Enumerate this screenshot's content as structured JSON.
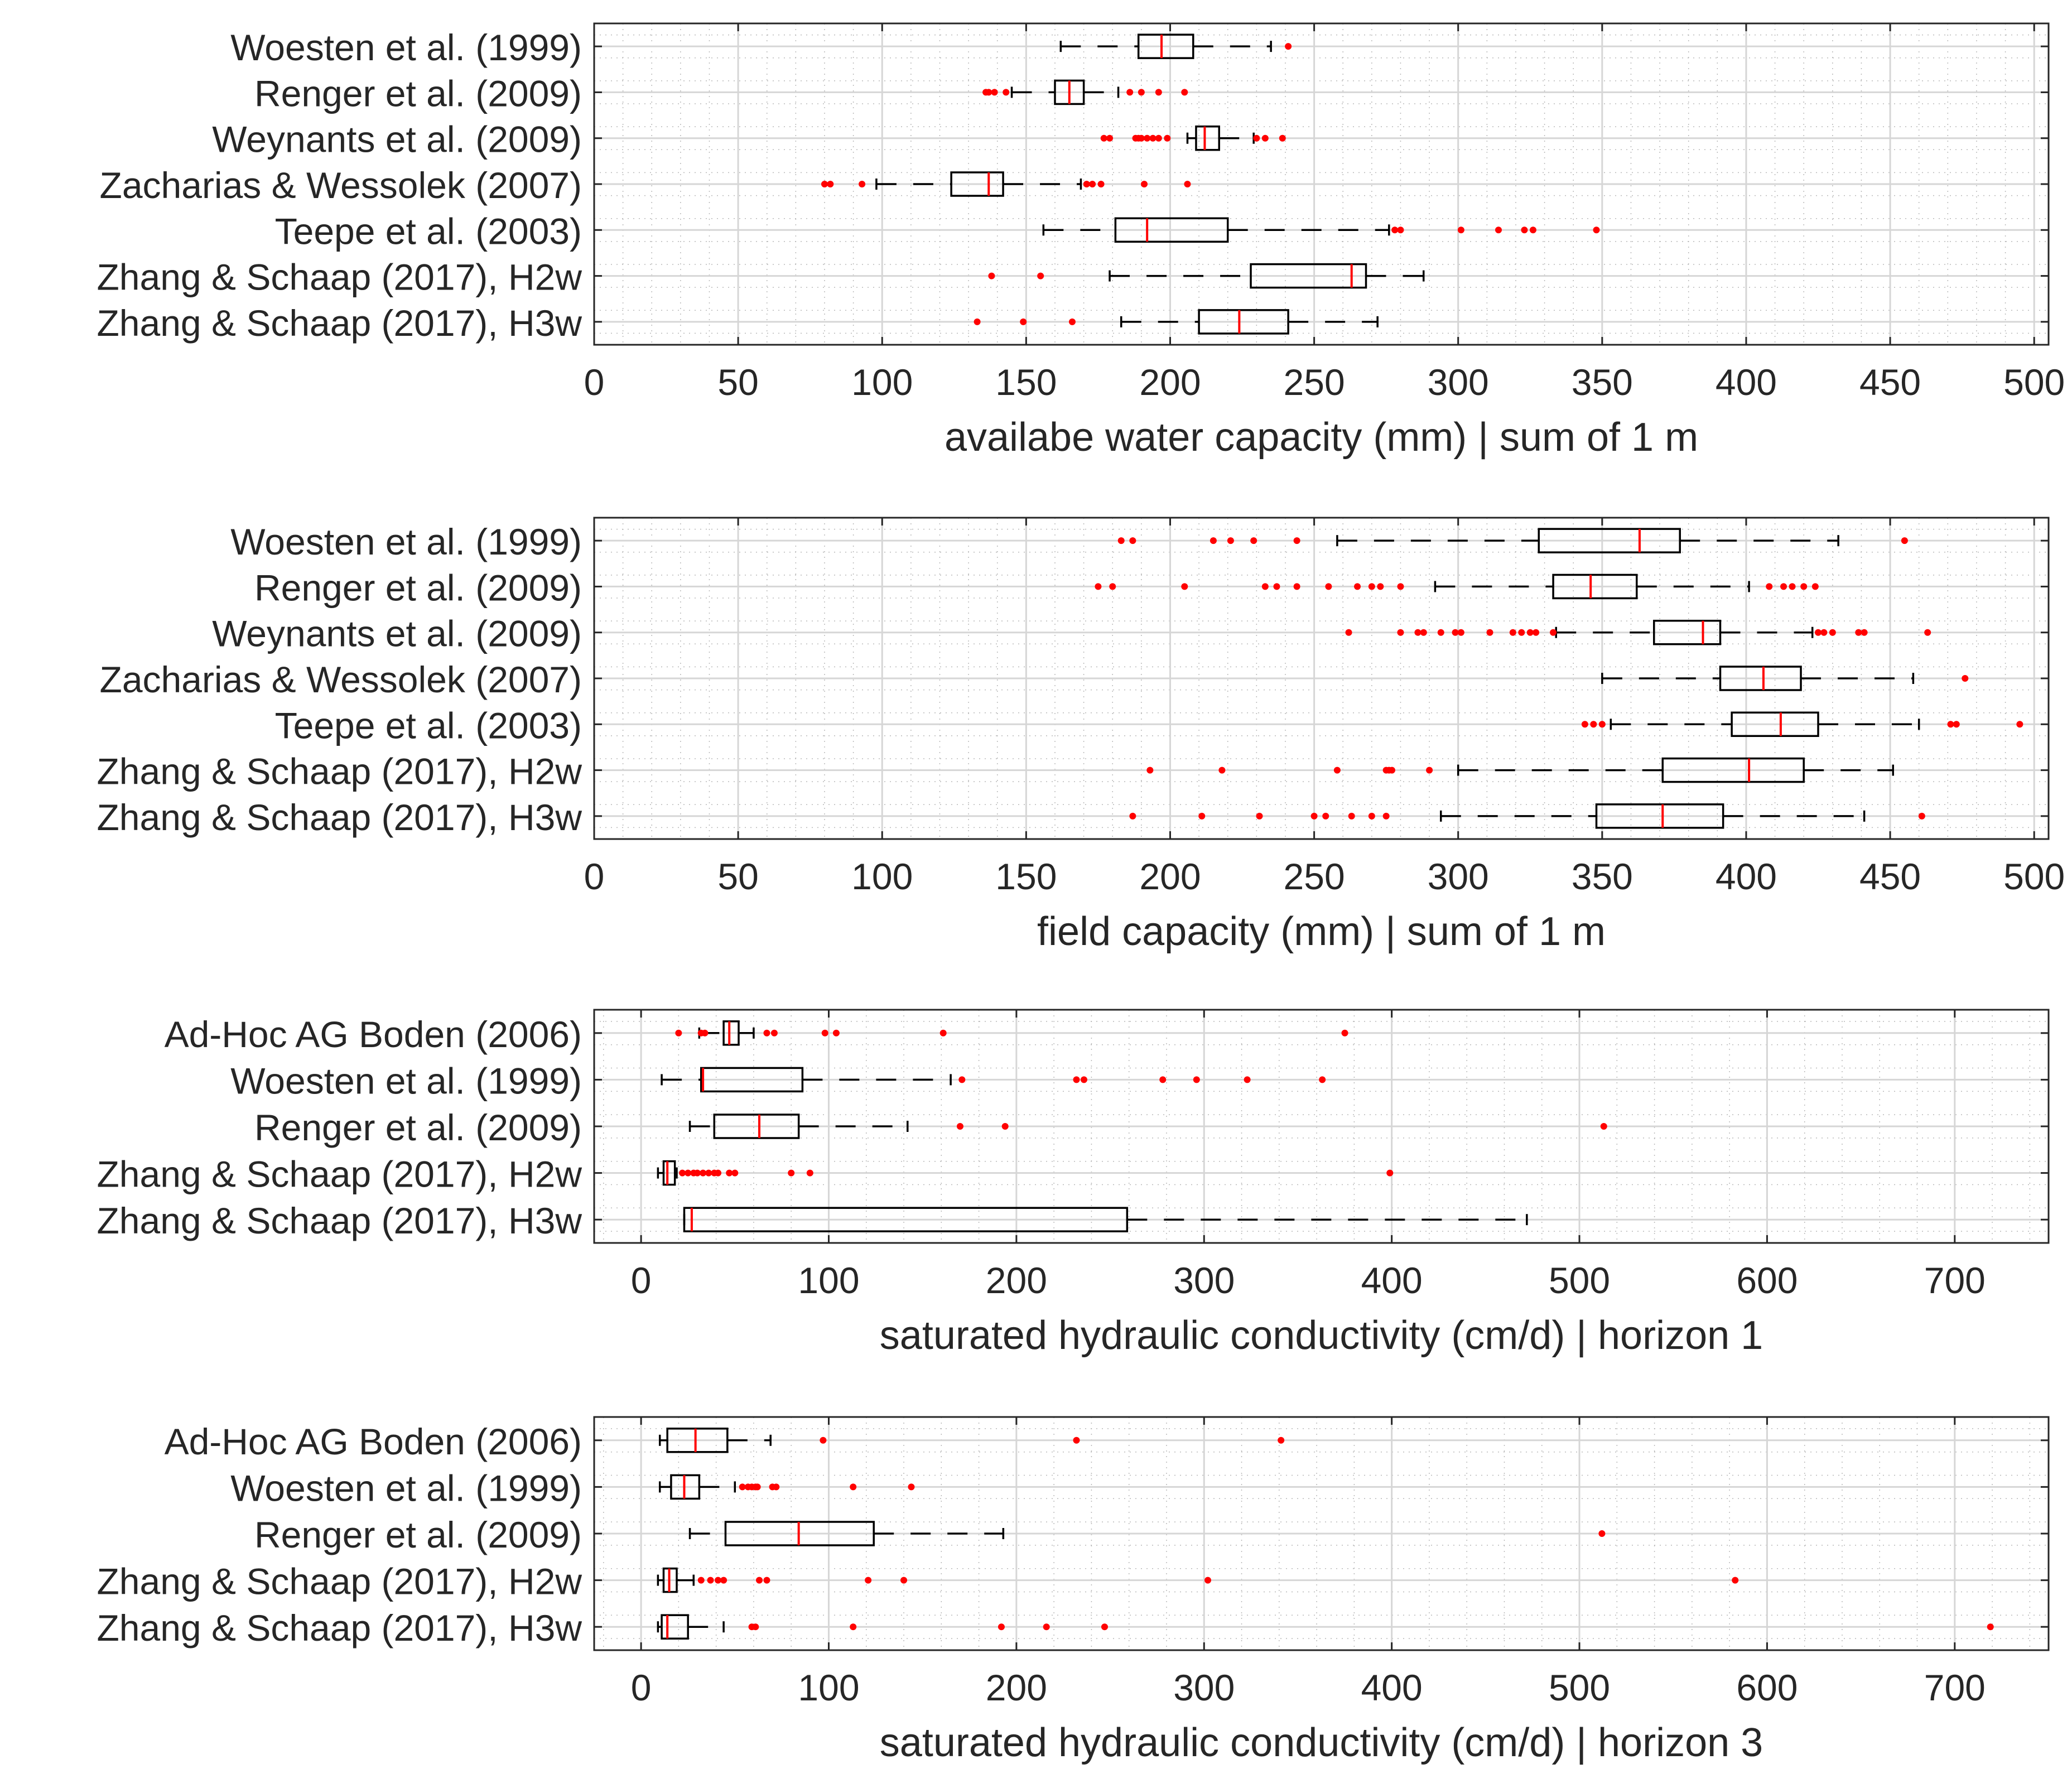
{
  "colors": {
    "box": "#000000",
    "median": "#ff0000",
    "outlier": "#ff0000",
    "grid": "#d6d6d6",
    "text": "#262626"
  },
  "chart_data": [
    {
      "type": "box",
      "id": "awc",
      "xlabel": "availabe water capacity (mm)  |  sum of  1 m",
      "xlim": [
        0,
        505
      ],
      "xticks": [
        0,
        50,
        100,
        150,
        200,
        250,
        300,
        350,
        400,
        450,
        500
      ],
      "xtick_labels": [
        "0",
        "50",
        "100",
        "150",
        "200",
        "250",
        "300",
        "350",
        "400",
        "450",
        "500"
      ],
      "grid": true,
      "series": [
        {
          "name": "Woesten et al. (1999)",
          "whisker_low": 162,
          "q1": 189,
          "median": 197,
          "q3": 208,
          "whisker_high": 235,
          "outliers": [
            241
          ]
        },
        {
          "name": "Renger et al. (2009)",
          "whisker_low": 145,
          "q1": 160,
          "median": 165,
          "q3": 170,
          "whisker_high": 182,
          "outliers": [
            136,
            137,
            139,
            143,
            186,
            190,
            196,
            205
          ]
        },
        {
          "name": "Weynants et al. (2009)",
          "whisker_low": 206,
          "q1": 209,
          "median": 212,
          "q3": 217,
          "whisker_high": 229,
          "outliers": [
            177,
            179,
            188,
            189,
            190,
            192,
            194,
            196,
            199,
            230,
            233,
            239
          ]
        },
        {
          "name": "Zacharias & Wessolek (2007)",
          "whisker_low": 98,
          "q1": 124,
          "median": 137,
          "q3": 142,
          "whisker_high": 169,
          "outliers": [
            80,
            82,
            93,
            171,
            173,
            176,
            191,
            206
          ]
        },
        {
          "name": "Teepe et al. (2003)",
          "whisker_low": 156,
          "q1": 181,
          "median": 192,
          "q3": 220,
          "whisker_high": 276,
          "outliers": [
            278,
            280,
            301,
            314,
            323,
            326,
            348
          ]
        },
        {
          "name": "Zhang & Schaap (2017), H2w",
          "whisker_low": 179,
          "q1": 228,
          "median": 263,
          "q3": 268,
          "whisker_high": 288,
          "outliers": [
            138,
            155
          ]
        },
        {
          "name": "Zhang & Schaap (2017), H3w",
          "whisker_low": 183,
          "q1": 210,
          "median": 224,
          "q3": 241,
          "whisker_high": 272,
          "outliers": [
            133,
            149,
            166
          ]
        }
      ]
    },
    {
      "type": "box",
      "id": "fc",
      "xlabel": "field capacity (mm)  |  sum of  1 m",
      "xlim": [
        0,
        505
      ],
      "xticks": [
        0,
        50,
        100,
        150,
        200,
        250,
        300,
        350,
        400,
        450,
        500
      ],
      "xtick_labels": [
        "0",
        "50",
        "100",
        "150",
        "200",
        "250",
        "300",
        "350",
        "400",
        "450",
        "500"
      ],
      "grid": true,
      "series": [
        {
          "name": "Woesten et al. (1999)",
          "whisker_low": 258,
          "q1": 328,
          "median": 363,
          "q3": 377,
          "whisker_high": 432,
          "outliers": [
            183,
            187,
            215,
            221,
            229,
            244,
            455
          ]
        },
        {
          "name": "Renger et al. (2009)",
          "whisker_low": 292,
          "q1": 333,
          "median": 346,
          "q3": 362,
          "whisker_high": 401,
          "outliers": [
            175,
            180,
            205,
            233,
            237,
            244,
            255,
            265,
            270,
            273,
            280,
            408,
            413,
            416,
            420,
            424
          ]
        },
        {
          "name": "Weynants et al. (2009)",
          "whisker_low": 334,
          "q1": 368,
          "median": 385,
          "q3": 391,
          "whisker_high": 423,
          "outliers": [
            262,
            280,
            286,
            288,
            294,
            299,
            301,
            311,
            319,
            322,
            325,
            327,
            333,
            425,
            427,
            430,
            439,
            441,
            463
          ]
        },
        {
          "name": "Zacharias & Wessolek (2007)",
          "whisker_low": 350,
          "q1": 391,
          "median": 406,
          "q3": 419,
          "whisker_high": 458,
          "outliers": [
            476
          ]
        },
        {
          "name": "Teepe et al. (2003)",
          "whisker_low": 353,
          "q1": 395,
          "median": 412,
          "q3": 425,
          "whisker_high": 460,
          "outliers": [
            344,
            347,
            350,
            471,
            473,
            495
          ]
        },
        {
          "name": "Zhang & Schaap (2017), H2w",
          "whisker_low": 300,
          "q1": 371,
          "median": 401,
          "q3": 420,
          "whisker_high": 451,
          "outliers": [
            193,
            218,
            258,
            275,
            276,
            277,
            290
          ]
        },
        {
          "name": "Zhang & Schaap (2017), H3w",
          "whisker_low": 294,
          "q1": 348,
          "median": 371,
          "q3": 392,
          "whisker_high": 441,
          "outliers": [
            187,
            211,
            231,
            250,
            254,
            263,
            270,
            275,
            461
          ]
        }
      ]
    },
    {
      "type": "box",
      "id": "ksat_h1",
      "xlabel": "saturated hydraulic conductivity (cm/d)  |  horizon  1",
      "xlim": [
        -25,
        750
      ],
      "xticks": [
        0,
        100,
        200,
        300,
        400,
        500,
        600,
        700
      ],
      "xtick_labels": [
        "0",
        "100",
        "200",
        "300",
        "400",
        "500",
        "600",
        "700"
      ],
      "grid": true,
      "series": [
        {
          "name": "Ad-Hoc AG Boden (2006)",
          "whisker_low": 31,
          "q1": 44,
          "median": 47,
          "q3": 52,
          "whisker_high": 60,
          "outliers": [
            20,
            32,
            34,
            67,
            71,
            98,
            104,
            161,
            375
          ]
        },
        {
          "name": "Woesten et al. (1999)",
          "whisker_low": 11,
          "q1": 32,
          "median": 33,
          "q3": 86,
          "whisker_high": 165,
          "outliers": [
            171,
            232,
            236,
            278,
            296,
            323,
            363
          ]
        },
        {
          "name": "Renger et al. (2009)",
          "whisker_low": 26,
          "q1": 39,
          "median": 63,
          "q3": 84,
          "whisker_high": 142,
          "outliers": [
            170,
            194,
            513
          ]
        },
        {
          "name": "Zhang & Schaap (2017), H2w",
          "whisker_low": 9,
          "q1": 12,
          "median": 14,
          "q3": 18,
          "whisker_high": 19,
          "outliers": [
            22,
            25,
            28,
            30,
            33,
            36,
            39,
            41,
            47,
            50,
            80,
            90,
            399
          ]
        },
        {
          "name": "Zhang & Schaap (2017), H3w",
          "whisker_low": 23,
          "q1": 23,
          "median": 27,
          "q3": 259,
          "whisker_high": 472,
          "outliers": []
        }
      ]
    },
    {
      "type": "box",
      "id": "ksat_h3",
      "xlabel": "saturated hydraulic conductivity (cm/d)  |  horizon  3",
      "xlim": [
        -25,
        750
      ],
      "xticks": [
        0,
        100,
        200,
        300,
        400,
        500,
        600,
        700
      ],
      "xtick_labels": [
        "0",
        "100",
        "200",
        "300",
        "400",
        "500",
        "600",
        "700"
      ],
      "grid": true,
      "series": [
        {
          "name": "Ad-Hoc AG Boden (2006)",
          "whisker_low": 10,
          "q1": 14,
          "median": 29,
          "q3": 46,
          "whisker_high": 69,
          "outliers": [
            97,
            232,
            341
          ]
        },
        {
          "name": "Woesten et al. (1999)",
          "whisker_low": 10,
          "q1": 16,
          "median": 23,
          "q3": 31,
          "whisker_high": 50,
          "outliers": [
            54,
            57,
            59,
            61,
            62,
            70,
            72,
            113,
            144
          ]
        },
        {
          "name": "Renger et al. (2009)",
          "whisker_low": 26,
          "q1": 45,
          "median": 84,
          "q3": 124,
          "whisker_high": 193,
          "outliers": [
            512
          ]
        },
        {
          "name": "Zhang & Schaap (2017), H2w",
          "whisker_low": 9,
          "q1": 12,
          "median": 15,
          "q3": 19,
          "whisker_high": 28,
          "outliers": [
            32,
            37,
            41,
            44,
            63,
            67,
            121,
            140,
            302,
            583
          ]
        },
        {
          "name": "Zhang & Schaap (2017), H3w",
          "whisker_low": 9,
          "q1": 11,
          "median": 14,
          "q3": 25,
          "whisker_high": 44,
          "outliers": [
            59,
            61,
            113,
            192,
            216,
            247,
            719
          ]
        }
      ]
    }
  ]
}
